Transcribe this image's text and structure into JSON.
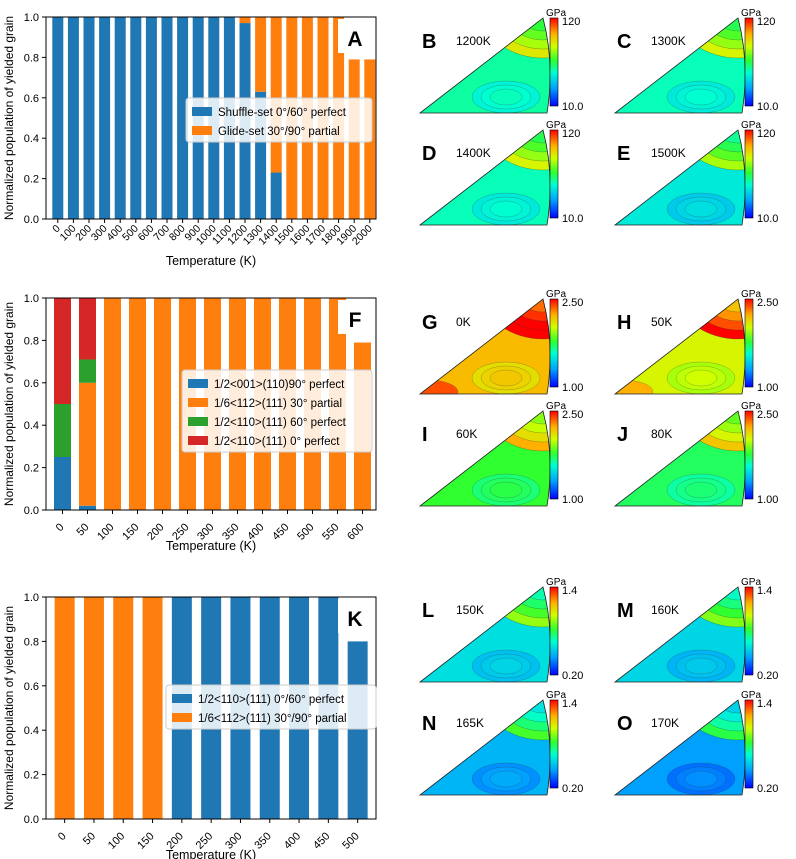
{
  "colors": {
    "blue": "#1f77b4",
    "orange": "#ff7f0e",
    "green": "#2ca02c",
    "red": "#d62728",
    "axis": "#000000"
  },
  "chart_data": [
    {
      "id": "A",
      "type": "bar",
      "stacked": true,
      "panel_label": "A",
      "xlabel": "Temperature (K)",
      "ylabel": "Normalized population of yielded grain",
      "ylim": [
        0,
        1.0
      ],
      "yticks": [
        "0.0",
        "0.2",
        "0.4",
        "0.6",
        "0.8",
        "1.0"
      ],
      "legend_position": "center-right",
      "categories": [
        "0",
        "100",
        "200",
        "300",
        "400",
        "500",
        "600",
        "700",
        "800",
        "900",
        "1000",
        "1100",
        "1200",
        "1300",
        "1400",
        "1500",
        "1600",
        "1700",
        "1800",
        "1900",
        "2000"
      ],
      "series": [
        {
          "name": "Shuffle-set 0°/60° perfect",
          "color": "#1f77b4",
          "values": [
            1,
            1,
            1,
            1,
            1,
            1,
            1,
            1,
            1,
            1,
            1,
            1,
            0.97,
            0.63,
            0.23,
            0,
            0,
            0,
            0,
            0,
            0
          ]
        },
        {
          "name": "Glide-set 30°/90° partial",
          "color": "#ff7f0e",
          "values": [
            0,
            0,
            0,
            0,
            0,
            0,
            0,
            0,
            0,
            0,
            0,
            0,
            0.03,
            0.37,
            0.77,
            1,
            1,
            1,
            1,
            0.79,
            0.79
          ]
        }
      ]
    },
    {
      "id": "F",
      "type": "bar",
      "stacked": true,
      "panel_label": "F",
      "xlabel": "Temperature (K)",
      "ylabel": "Normalized population of yielded grain",
      "ylim": [
        0,
        1.0
      ],
      "yticks": [
        "0.0",
        "0.2",
        "0.4",
        "0.6",
        "0.8",
        "1.0"
      ],
      "legend_position": "center-right",
      "categories": [
        "0",
        "50",
        "100",
        "150",
        "200",
        "250",
        "300",
        "350",
        "400",
        "450",
        "500",
        "550",
        "600"
      ],
      "series": [
        {
          "name": "1/2<001>(110)90° perfect",
          "color": "#1f77b4",
          "values": [
            0.25,
            0.02,
            0,
            0,
            0,
            0,
            0,
            0,
            0,
            0,
            0,
            0,
            0
          ]
        },
        {
          "name": "1/6<112>(111) 30° partial",
          "color": "#ff7f0e",
          "values": [
            0,
            0.58,
            1,
            1,
            1,
            1,
            1,
            1,
            1,
            1,
            1,
            1,
            0.79
          ]
        },
        {
          "name": "1/2<110>(111) 60° perfect",
          "color": "#2ca02c",
          "values": [
            0.25,
            0.11,
            0,
            0,
            0,
            0,
            0,
            0,
            0,
            0,
            0,
            0,
            0
          ]
        },
        {
          "name": "1/2<110>(111) 0° perfect",
          "color": "#d62728",
          "values": [
            0.5,
            0.29,
            0,
            0,
            0,
            0,
            0,
            0,
            0,
            0,
            0,
            0,
            0
          ]
        }
      ]
    },
    {
      "id": "K",
      "type": "bar",
      "stacked": true,
      "panel_label": "K",
      "xlabel": "Temperature (K)",
      "ylabel": "Normalized population of yielded grain",
      "ylim": [
        0,
        1.0
      ],
      "yticks": [
        "0.0",
        "0.2",
        "0.4",
        "0.6",
        "0.8",
        "1.0"
      ],
      "legend_position": "center-right",
      "categories": [
        "0",
        "50",
        "100",
        "150",
        "200",
        "250",
        "300",
        "350",
        "400",
        "450",
        "500"
      ],
      "series": [
        {
          "name": "1/2<110>(111) 0°/60° perfect",
          "color": "#1f77b4",
          "values": [
            0,
            0,
            0,
            0,
            1,
            1,
            1,
            1,
            1,
            1,
            0.8
          ]
        },
        {
          "name": "1/6<112>(111) 30°/90° partial",
          "color": "#ff7f0e",
          "values": [
            1,
            1,
            1,
            1,
            0,
            0,
            0,
            0,
            0,
            0,
            0
          ]
        }
      ]
    },
    {
      "id": "contours",
      "type": "heatmap",
      "description": "inverse pole figure triangles with colorbars",
      "unit": "GPa",
      "groups": [
        {
          "cbar_max": "120",
          "cbar_min": "10.0",
          "panels": [
            {
              "label": "B",
              "temp": "1200K",
              "level": 0.42
            },
            {
              "label": "C",
              "temp": "1300K",
              "level": 0.4
            },
            {
              "label": "D",
              "temp": "1400K",
              "level": 0.4
            },
            {
              "label": "E",
              "temp": "1500K",
              "level": 0.34
            }
          ]
        },
        {
          "cbar_max": "2.50",
          "cbar_min": "1.00",
          "panels": [
            {
              "label": "G",
              "temp": "0K",
              "level": 0.8
            },
            {
              "label": "H",
              "temp": "50K",
              "level": 0.7
            },
            {
              "label": "I",
              "temp": "60K",
              "level": 0.52
            },
            {
              "label": "J",
              "temp": "80K",
              "level": 0.48
            }
          ]
        },
        {
          "cbar_max": "1.4",
          "cbar_min": "0.20",
          "panels": [
            {
              "label": "L",
              "temp": "150K",
              "level": 0.32
            },
            {
              "label": "M",
              "temp": "160K",
              "level": 0.3
            },
            {
              "label": "N",
              "temp": "165K",
              "level": 0.24
            },
            {
              "label": "O",
              "temp": "170K",
              "level": 0.2
            }
          ]
        }
      ]
    }
  ]
}
